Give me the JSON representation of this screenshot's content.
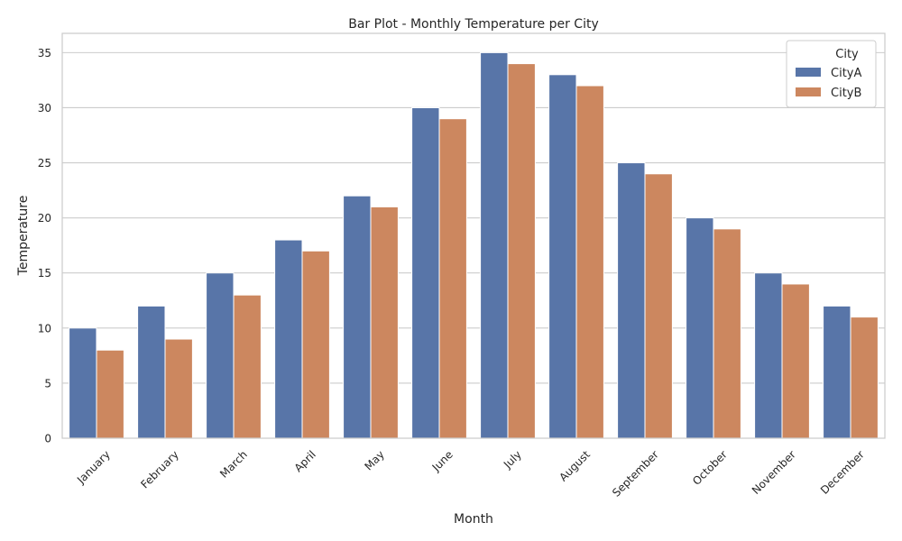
{
  "chart_data": {
    "type": "bar",
    "title": "Bar Plot - Monthly Temperature per City",
    "xlabel": "Month",
    "ylabel": "Temperature",
    "categories": [
      "January",
      "February",
      "March",
      "April",
      "May",
      "June",
      "July",
      "August",
      "September",
      "October",
      "November",
      "December"
    ],
    "series": [
      {
        "name": "CityA",
        "color": "#5875a8",
        "values": [
          10,
          12,
          15,
          18,
          22,
          30,
          35,
          33,
          25,
          20,
          15,
          12
        ]
      },
      {
        "name": "CityB",
        "color": "#cc875f",
        "values": [
          8,
          9,
          13,
          17,
          21,
          29,
          34,
          32,
          24,
          19,
          14,
          11
        ]
      }
    ],
    "ylim": [
      0,
      36.75
    ],
    "yticks": [
      0,
      5,
      10,
      15,
      20,
      25,
      30,
      35
    ],
    "grid": true,
    "legend": {
      "title": "City",
      "position": "top-right"
    }
  }
}
